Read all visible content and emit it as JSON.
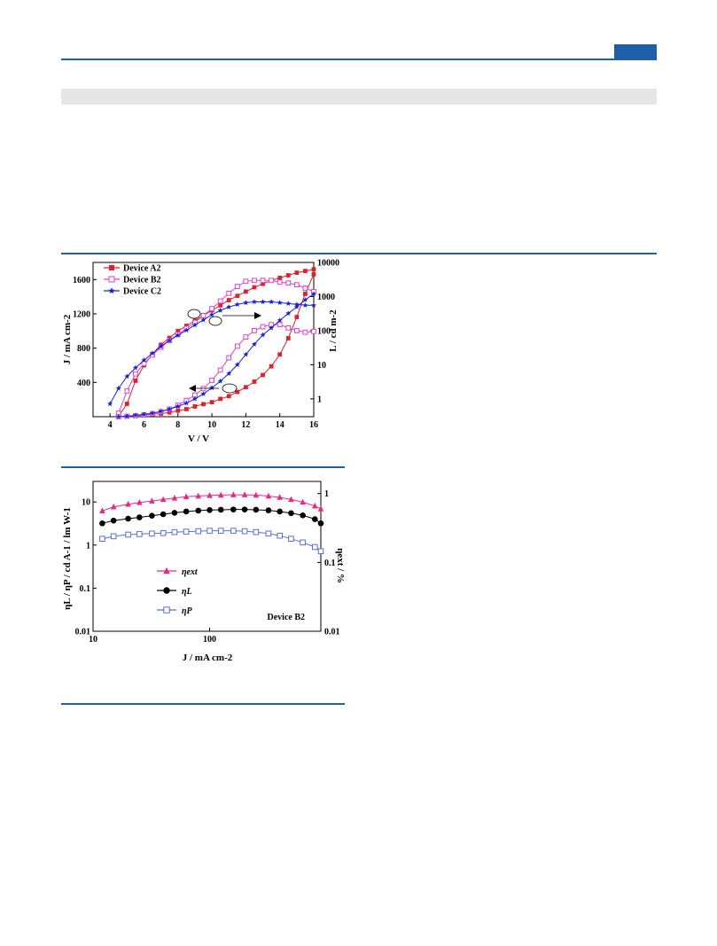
{
  "chart_data": [
    {
      "type": "line",
      "xlabel": "V / V",
      "ylabel": "J / mA cm-2",
      "y2label": "L / cd m-2",
      "xlim": [
        3,
        16
      ],
      "ylim": [
        0,
        1800
      ],
      "y2lim_log": [
        0.3,
        10000
      ],
      "y2scale": "log",
      "xticks": [
        "4",
        "6",
        "8",
        "10",
        "12",
        "14",
        "16"
      ],
      "yticks": [
        "400",
        "800",
        "1200",
        "1600"
      ],
      "y2ticks": [
        "1",
        "10",
        "100",
        "1000",
        "10000"
      ],
      "legend_position": "top-left",
      "series": [
        {
          "name": "Device A2",
          "axis": "both",
          "color": "#e0202a",
          "marker": "square",
          "J": {
            "x": [
              4.5,
              5.0,
              5.5,
              6.0,
              6.5,
              7.0,
              7.5,
              8.0,
              8.5,
              9.0,
              9.5,
              10.0,
              10.5,
              11.0,
              11.5,
              12.0,
              12.5,
              13.0,
              13.5,
              14.0,
              14.5,
              15.0,
              15.5,
              16.0
            ],
            "y": [
              5,
              150,
              420,
              600,
              730,
              840,
              920,
              1000,
              1060,
              1120,
              1180,
              1240,
              1300,
              1360,
              1410,
              1460,
              1510,
              1550,
              1590,
              1620,
              1650,
              1680,
              1700,
              1720
            ]
          },
          "L": {
            "x": [
              4.5,
              5.0,
              5.5,
              6.0,
              6.5,
              7.0,
              7.5,
              8.0,
              8.5,
              9.0,
              9.5,
              10.0,
              10.5,
              11.0,
              11.5,
              12.0,
              12.5,
              13.0,
              13.5,
              14.0,
              14.5,
              15.0,
              15.5,
              16.0
            ],
            "y": [
              0.3,
              0.31,
              0.32,
              0.33,
              0.35,
              0.37,
              0.4,
              0.45,
              0.5,
              0.6,
              0.7,
              0.8,
              1.0,
              1.2,
              1.6,
              2.2,
              3.2,
              5,
              9,
              20,
              60,
              250,
              1200,
              4500
            ]
          }
        },
        {
          "name": "Device B2",
          "axis": "both",
          "color": "#e040c8",
          "marker": "open-square",
          "J": {
            "x": [
              4.5,
              5.0,
              5.5,
              6.0,
              6.5,
              7.0,
              7.5,
              8.0,
              8.5,
              9.0,
              9.5,
              10.0,
              10.5,
              11.0,
              11.5,
              12.0,
              12.5,
              13.0,
              13.5,
              14.0,
              14.5,
              15.0,
              15.5,
              16.0
            ],
            "y": [
              40,
              300,
              500,
              620,
              720,
              810,
              890,
              960,
              1030,
              1100,
              1180,
              1260,
              1350,
              1440,
              1520,
              1580,
              1590,
              1590,
              1590,
              1570,
              1560,
              1540,
              1500,
              1460
            ]
          },
          "L": {
            "x": [
              4.5,
              5.0,
              5.5,
              6.0,
              6.5,
              7.0,
              7.5,
              8.0,
              8.5,
              9.0,
              9.5,
              10.0,
              10.5,
              11.0,
              11.5,
              12.0,
              12.5,
              13.0,
              13.5,
              14.0,
              14.5,
              15.0,
              15.5,
              16.0
            ],
            "y": [
              0.3,
              0.31,
              0.32,
              0.34,
              0.37,
              0.42,
              0.5,
              0.65,
              0.9,
              1.3,
              2.0,
              3.5,
              7,
              16,
              35,
              65,
              100,
              130,
              150,
              150,
              120,
              100,
              90,
              95
            ]
          }
        },
        {
          "name": "Device C2",
          "axis": "both",
          "color": "#1a22d8",
          "marker": "star",
          "J": {
            "x": [
              4.0,
              4.5,
              5.0,
              5.5,
              6.0,
              6.5,
              7.0,
              7.5,
              8.0,
              8.5,
              9.0,
              9.5,
              10.0,
              10.5,
              11.0,
              11.5,
              12.0,
              12.5,
              13.0,
              13.5,
              14.0,
              14.5,
              15.0,
              15.5,
              16.0
            ],
            "y": [
              150,
              330,
              470,
              570,
              660,
              740,
              820,
              890,
              950,
              1010,
              1070,
              1130,
              1190,
              1240,
              1280,
              1310,
              1330,
              1340,
              1340,
              1340,
              1330,
              1320,
              1310,
              1300,
              1300
            ]
          },
          "L": {
            "x": [
              4.5,
              5.0,
              5.5,
              6.0,
              6.5,
              7.0,
              7.5,
              8.0,
              8.5,
              9.0,
              9.5,
              10.0,
              10.5,
              11.0,
              11.5,
              12.0,
              12.5,
              13.0,
              13.5,
              14.0,
              14.5,
              15.0,
              15.5,
              16.0
            ],
            "y": [
              0.3,
              0.31,
              0.33,
              0.35,
              0.38,
              0.43,
              0.5,
              0.6,
              0.75,
              1.0,
              1.4,
              2.1,
              3.3,
              5.5,
              10,
              20,
              40,
              75,
              120,
              200,
              320,
              500,
              800,
              1200
            ]
          }
        }
      ],
      "legend": [
        "Device A2",
        "Device B2",
        "Device C2"
      ]
    },
    {
      "type": "scatter",
      "xlabel": "J / mA cm-2",
      "ylabel": "ηL / ηP / cd A-1 / lm W-1",
      "y2label": "ηext / %",
      "xscale": "log",
      "yscale": "log",
      "y2scale": "log",
      "xlim": [
        10,
        900
      ],
      "ylim": [
        0.01,
        30
      ],
      "y2lim": [
        0.01,
        1.5
      ],
      "xticks": [
        "10",
        "100"
      ],
      "yticks": [
        "0.01",
        "0.1",
        "1",
        "10"
      ],
      "y2ticks": [
        "0.01",
        "0.1",
        "1"
      ],
      "annotation": "Device B2",
      "legend_position": "center-left",
      "series": [
        {
          "name": "ηext",
          "axis": "right",
          "color": "#e8288a",
          "marker": "triangle",
          "x": [
            12,
            15,
            20,
            25,
            32,
            40,
            50,
            63,
            80,
            100,
            125,
            160,
            200,
            250,
            320,
            400,
            500,
            630,
            800,
            900
          ],
          "y": [
            0.56,
            0.64,
            0.7,
            0.74,
            0.78,
            0.82,
            0.86,
            0.9,
            0.92,
            0.94,
            0.95,
            0.96,
            0.96,
            0.95,
            0.92,
            0.88,
            0.82,
            0.75,
            0.66,
            0.6
          ]
        },
        {
          "name": "ηL",
          "axis": "left",
          "color": "#000000",
          "marker": "circle",
          "x": [
            12,
            15,
            20,
            25,
            32,
            40,
            50,
            63,
            80,
            100,
            125,
            160,
            200,
            250,
            320,
            400,
            500,
            630,
            800,
            900
          ],
          "y": [
            3.2,
            3.7,
            4.1,
            4.4,
            4.8,
            5.2,
            5.6,
            6.0,
            6.3,
            6.5,
            6.6,
            6.7,
            6.7,
            6.6,
            6.4,
            6.0,
            5.5,
            4.9,
            4.0,
            3.2
          ]
        },
        {
          "name": "ηP",
          "axis": "left",
          "color": "#5a6ed8",
          "marker": "open-square",
          "x": [
            12,
            15,
            20,
            25,
            32,
            40,
            50,
            63,
            80,
            100,
            125,
            160,
            200,
            250,
            320,
            400,
            500,
            630,
            800,
            900
          ],
          "y": [
            1.4,
            1.6,
            1.75,
            1.8,
            1.85,
            1.9,
            2.0,
            2.05,
            2.1,
            2.15,
            2.15,
            2.15,
            2.1,
            2.0,
            1.85,
            1.65,
            1.4,
            1.15,
            0.9,
            0.72
          ]
        }
      ],
      "legend": [
        "ηext",
        "ηL",
        "ηP"
      ]
    }
  ]
}
